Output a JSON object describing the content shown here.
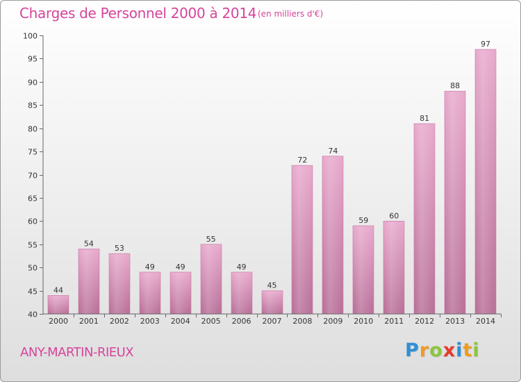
{
  "chart_data": {
    "type": "bar",
    "title": "Charges de Personnel 2000 à 2014",
    "subtitle": "(en milliers d'€)",
    "categories": [
      "2000",
      "2001",
      "2002",
      "2003",
      "2004",
      "2005",
      "2006",
      "2007",
      "2008",
      "2009",
      "2010",
      "2011",
      "2012",
      "2013",
      "2014"
    ],
    "values": [
      44,
      54,
      53,
      49,
      49,
      55,
      49,
      45,
      72,
      74,
      59,
      60,
      81,
      88,
      97
    ],
    "ylim": [
      40,
      100
    ],
    "yticks": [
      40,
      45,
      50,
      55,
      60,
      65,
      70,
      75,
      80,
      85,
      90,
      95,
      100
    ],
    "grid": false,
    "data_labels": true,
    "bar_color": "#d98ab5"
  },
  "footer": {
    "commune": "ANY-MARTIN-RIEUX",
    "logo_letters": [
      {
        "char": "P",
        "color": "#2e8fd8"
      },
      {
        "char": "r",
        "color": "#f29a1f"
      },
      {
        "char": "o",
        "color": "#8cc63e"
      },
      {
        "char": "x",
        "color": "#e63a2e"
      },
      {
        "char": "i",
        "color": "#2e8fd8"
      },
      {
        "char": "t",
        "color": "#f29a1f"
      },
      {
        "char": "i",
        "color": "#8cc63e"
      }
    ]
  }
}
